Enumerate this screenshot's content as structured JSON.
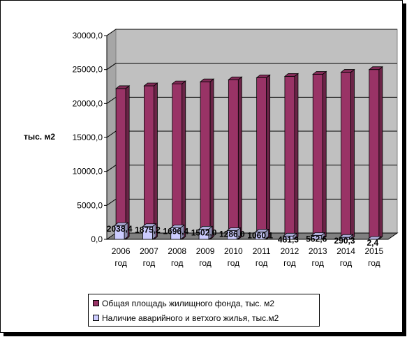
{
  "chart_data": {
    "type": "bar",
    "ylabel": "тыс. м2",
    "ylim": [
      0,
      30000
    ],
    "yticks": [
      "0,0",
      "5000,0",
      "10000,0",
      "15000,0",
      "20000,0",
      "25000,0",
      "30000,0"
    ],
    "categories": [
      "2006 год",
      "2007 год",
      "2008 год",
      "2009 год",
      "2010 год",
      "2011 год",
      "2012 год",
      "2013 год",
      "2014 год",
      "2015 год"
    ],
    "grid": true,
    "legend_position": "bottom",
    "series": [
      {
        "name": "Общая площадь жилищного фонда, тыс. м2",
        "color": "#993366",
        "values": [
          22200,
          22600,
          22900,
          23200,
          23500,
          23800,
          24000,
          24300,
          24600,
          25000
        ]
      },
      {
        "name": "Наличие аварийного и ветхого жилья, тыс.м2",
        "color": "#ccccff",
        "values": [
          2038.4,
          1875.2,
          1696.4,
          1502.0,
          1286.0,
          1060.1,
          481.3,
          562.6,
          290.3,
          2.4
        ],
        "labels": [
          "2038,4",
          "1875,2",
          "1696,4",
          "1502,0",
          "1286,0",
          "1060,1",
          "481,3",
          "562,6",
          "290,3",
          "2,4"
        ]
      }
    ]
  }
}
